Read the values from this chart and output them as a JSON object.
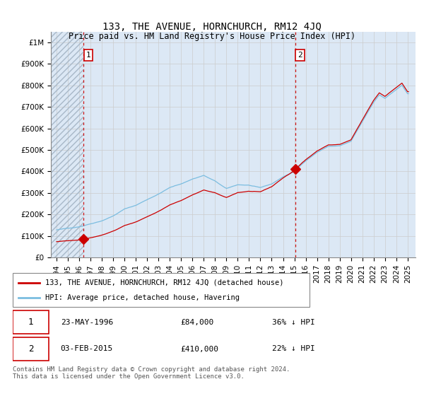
{
  "title": "133, THE AVENUE, HORNCHURCH, RM12 4JQ",
  "subtitle": "Price paid vs. HM Land Registry's House Price Index (HPI)",
  "xlim": [
    1993.5,
    2025.7
  ],
  "ylim": [
    0,
    1050000
  ],
  "yticks": [
    0,
    100000,
    200000,
    300000,
    400000,
    500000,
    600000,
    700000,
    800000,
    900000,
    1000000
  ],
  "ytick_labels": [
    "£0",
    "£100K",
    "£200K",
    "£300K",
    "£400K",
    "£500K",
    "£600K",
    "£700K",
    "£800K",
    "£900K",
    "£1M"
  ],
  "xticks": [
    1994,
    1995,
    1996,
    1997,
    1998,
    1999,
    2000,
    2001,
    2002,
    2003,
    2004,
    2005,
    2006,
    2007,
    2008,
    2009,
    2010,
    2011,
    2012,
    2013,
    2014,
    2015,
    2016,
    2017,
    2018,
    2019,
    2020,
    2021,
    2022,
    2023,
    2024,
    2025
  ],
  "hpi_color": "#7bbde0",
  "price_color": "#cc0000",
  "grid_color": "#cccccc",
  "background_plot": "#dce8f5",
  "point1_year": 1996.39,
  "point1_price": 84000,
  "point1_label": "1",
  "point1_date": "23-MAY-1996",
  "point1_amount": "£84,000",
  "point1_note": "36% ↓ HPI",
  "point2_year": 2015.09,
  "point2_price": 410000,
  "point2_label": "2",
  "point2_date": "03-FEB-2015",
  "point2_amount": "£410,000",
  "point2_note": "22% ↓ HPI",
  "legend_line1": "133, THE AVENUE, HORNCHURCH, RM12 4JQ (detached house)",
  "legend_line2": "HPI: Average price, detached house, Havering",
  "footer": "Contains HM Land Registry data © Crown copyright and database right 2024.\nThis data is licensed under the Open Government Licence v3.0.",
  "title_fontsize": 10,
  "axis_fontsize": 7.5,
  "legend_fontsize": 7.5,
  "footer_fontsize": 6.5
}
